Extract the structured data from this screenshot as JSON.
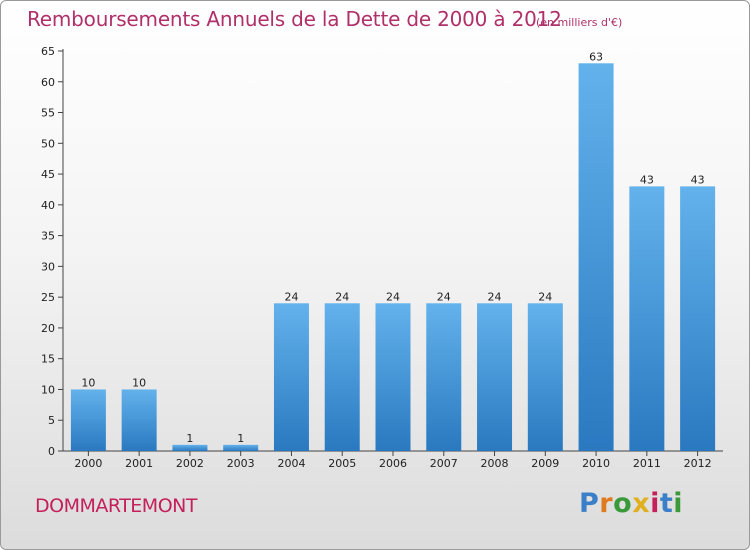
{
  "chart_data": {
    "type": "bar",
    "title": "Remboursements Annuels de la Dette de 2000 à 2012",
    "subtitle": "(en milliers d'€)",
    "categories": [
      "2000",
      "2001",
      "2002",
      "2003",
      "2004",
      "2005",
      "2006",
      "2007",
      "2008",
      "2009",
      "2010",
      "2011",
      "2012"
    ],
    "values": [
      10,
      10,
      1,
      1,
      24,
      24,
      24,
      24,
      24,
      24,
      63,
      43,
      43
    ],
    "data_labels": [
      "10",
      "10",
      "1",
      "1",
      "24",
      "24",
      "24",
      "24",
      "24",
      "24",
      "63",
      "43",
      "43"
    ],
    "ylim": [
      0,
      65
    ],
    "yticks": [
      0,
      5,
      10,
      15,
      20,
      25,
      30,
      35,
      40,
      45,
      50,
      55,
      60,
      65
    ],
    "ytick_labels": [
      "0",
      "5",
      "10",
      "15",
      "20",
      "25",
      "30",
      "35",
      "40",
      "45",
      "50",
      "55",
      "60",
      "65"
    ],
    "xlabel": "",
    "ylabel": "",
    "grid": false,
    "bar_color": "#4a9ede"
  },
  "footer": {
    "commune": "DOMMARTEMONT",
    "logo": "Proxiti",
    "logo_colors": [
      "#3a7fc8",
      "#e07a1f",
      "#3a9a3a",
      "#e0b020",
      "#c4205a",
      "#3a7fc8",
      "#3a9a3a"
    ]
  }
}
